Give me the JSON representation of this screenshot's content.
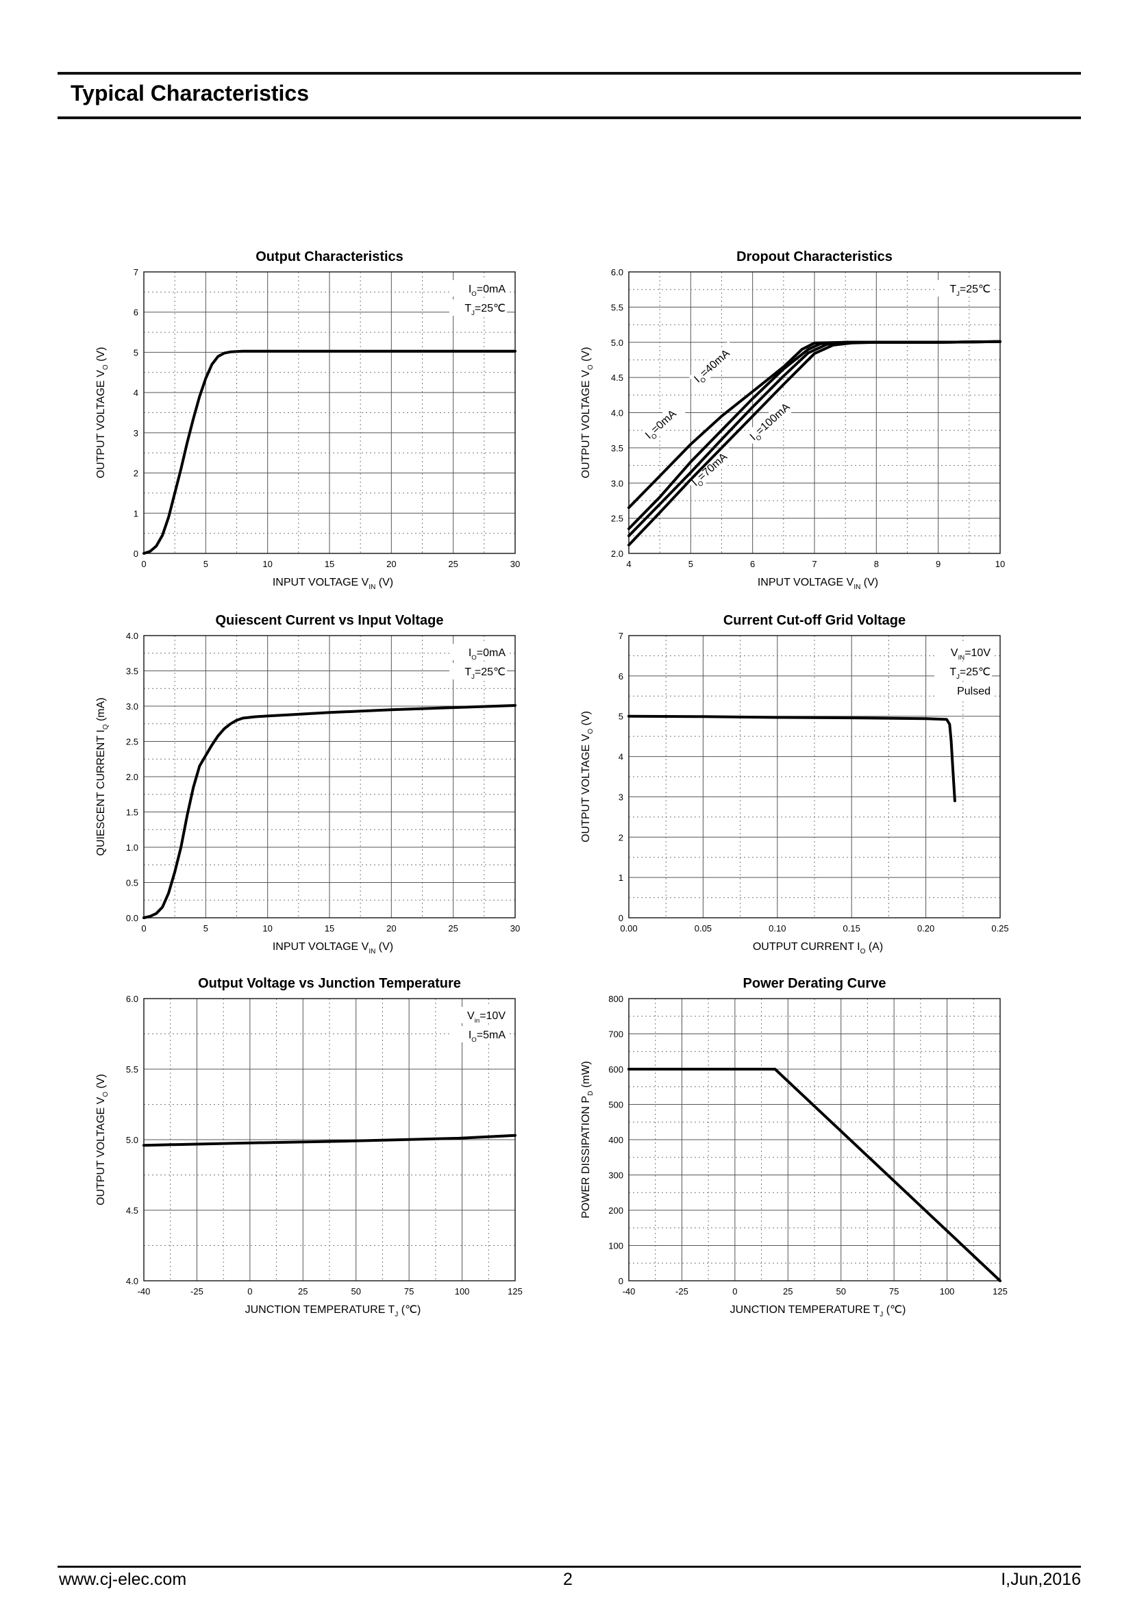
{
  "header": {
    "title": "Typical Characteristics"
  },
  "footer": {
    "url": "www.cj-elec.com",
    "page": "2",
    "date": "I,Jun,2016"
  },
  "chart_data": [
    {
      "type": "line",
      "title": "Output  Characteristics",
      "xlabel": "INPUT VOLTAGE",
      "xlabel_sym": "V",
      "xlabel_sub": "IN",
      "xlabel_unit": "(V)",
      "ylabel": "OUTPUT VOLTAGE",
      "ylabel_sym": "V",
      "ylabel_sub": "O",
      "ylabel_unit": "(V)",
      "xlim": [
        0,
        30
      ],
      "ylim": [
        0,
        7
      ],
      "xticks": [
        "0",
        "5",
        "10",
        "15",
        "20",
        "25",
        "30"
      ],
      "yticks": [
        "0",
        "1",
        "2",
        "3",
        "4",
        "5",
        "6",
        "7"
      ],
      "grid": true,
      "annotations": [
        {
          "sym": "I",
          "sub": "O",
          "rest": "=0mA"
        },
        {
          "sym": "T",
          "sub": "J",
          "rest": "=25℃"
        }
      ],
      "series": [
        {
          "x": [
            0,
            0.5,
            1,
            1.5,
            2,
            2.5,
            3,
            3.5,
            4,
            4.5,
            5,
            5.5,
            6,
            6.5,
            7,
            7.5,
            8,
            9,
            10,
            12,
            15,
            20,
            25,
            30
          ],
          "y": [
            0,
            0.05,
            0.18,
            0.45,
            0.9,
            1.5,
            2.1,
            2.75,
            3.35,
            3.9,
            4.35,
            4.7,
            4.9,
            4.98,
            5.01,
            5.02,
            5.03,
            5.03,
            5.03,
            5.03,
            5.03,
            5.03,
            5.03,
            5.03
          ]
        }
      ]
    },
    {
      "type": "line",
      "title": "Dropout Characteristics",
      "xlabel": "INPUT VOLTAGE",
      "xlabel_sym": "V",
      "xlabel_sub": "IN",
      "xlabel_unit": "(V)",
      "ylabel": "OUTPUT VOLTAGE",
      "ylabel_sym": "V",
      "ylabel_sub": "O",
      "ylabel_unit": "(V)",
      "xlim": [
        4,
        10
      ],
      "ylim": [
        2.0,
        6.0
      ],
      "xticks": [
        "4",
        "5",
        "6",
        "7",
        "8",
        "9",
        "10"
      ],
      "yticks": [
        "2.0",
        "2.5",
        "3.0",
        "3.5",
        "4.0",
        "4.5",
        "5.0",
        "5.5",
        "6.0"
      ],
      "grid": true,
      "annotations": [
        {
          "sym": "T",
          "sub": "J",
          "rest": "=25℃"
        }
      ],
      "series": [
        {
          "name": "=0mA",
          "sym": "I",
          "sub": "O",
          "x": [
            4,
            4.5,
            5,
            5.5,
            6,
            6.5,
            6.8,
            7,
            7.5,
            8,
            9,
            10
          ],
          "y": [
            2.65,
            3.1,
            3.55,
            3.95,
            4.3,
            4.65,
            4.9,
            4.99,
            5.0,
            5.0,
            5.0,
            5.01
          ]
        },
        {
          "name": "=40mA",
          "sym": "I",
          "sub": "O",
          "x": [
            4,
            4.5,
            5,
            5.5,
            6,
            6.5,
            6.9,
            7.1,
            7.5,
            8,
            9,
            10
          ],
          "y": [
            2.35,
            2.8,
            3.3,
            3.75,
            4.2,
            4.62,
            4.9,
            4.98,
            5.0,
            5.0,
            5.0,
            5.01
          ]
        },
        {
          "name": "=70mA",
          "sym": "I",
          "sub": "O",
          "x": [
            4,
            4.5,
            5,
            5.5,
            6,
            6.5,
            6.9,
            7.2,
            7.5,
            8,
            9,
            10
          ],
          "y": [
            2.25,
            2.7,
            3.15,
            3.62,
            4.08,
            4.52,
            4.85,
            4.97,
            5.0,
            5.0,
            5.0,
            5.01
          ]
        },
        {
          "name": "=100mA",
          "sym": "I",
          "sub": "O",
          "x": [
            4,
            4.5,
            5,
            5.5,
            6,
            6.5,
            7,
            7.3,
            7.6,
            8,
            9,
            10
          ],
          "y": [
            2.12,
            2.58,
            3.05,
            3.5,
            3.95,
            4.4,
            4.84,
            4.96,
            4.99,
            5.0,
            5.0,
            5.01
          ]
        }
      ]
    },
    {
      "type": "line",
      "title": "Quiescent Current vs Input Voltage",
      "xlabel": "INPUT VOLTAGE",
      "xlabel_sym": "V",
      "xlabel_sub": "IN",
      "xlabel_unit": "(V)",
      "ylabel": "QUIESCENT CURRENT",
      "ylabel_sym": "I",
      "ylabel_sub": "Q",
      "ylabel_unit": "(mA)",
      "xlim": [
        0,
        30
      ],
      "ylim": [
        0.0,
        4.0
      ],
      "xticks": [
        "0",
        "5",
        "10",
        "15",
        "20",
        "25",
        "30"
      ],
      "yticks": [
        "0.0",
        "0.5",
        "1.0",
        "1.5",
        "2.0",
        "2.5",
        "3.0",
        "3.5",
        "4.0"
      ],
      "grid": true,
      "annotations": [
        {
          "sym": "I",
          "sub": "O",
          "rest": "=0mA"
        },
        {
          "sym": "T",
          "sub": "J",
          "rest": "=25℃"
        }
      ],
      "series": [
        {
          "x": [
            0,
            0.5,
            1,
            1.5,
            2,
            2.5,
            3,
            3.5,
            4,
            4.5,
            5,
            5.5,
            6,
            6.5,
            7,
            7.5,
            8,
            9,
            10,
            12,
            15,
            20,
            25,
            30
          ],
          "y": [
            0,
            0.02,
            0.06,
            0.15,
            0.35,
            0.65,
            1.0,
            1.45,
            1.85,
            2.15,
            2.3,
            2.45,
            2.58,
            2.68,
            2.75,
            2.8,
            2.83,
            2.85,
            2.86,
            2.88,
            2.91,
            2.95,
            2.98,
            3.01
          ]
        }
      ]
    },
    {
      "type": "line",
      "title": "Current  Cut-off Grid Voltage",
      "xlabel": "OUTPUT CURRENT",
      "xlabel_sym": "I",
      "xlabel_sub": "O",
      "xlabel_unit": "(A)",
      "ylabel": "OUTPUT VOLTAGE",
      "ylabel_sym": "V",
      "ylabel_sub": "O",
      "ylabel_unit": "(V)",
      "xlim": [
        0.0,
        0.25
      ],
      "ylim": [
        0,
        7
      ],
      "xticks": [
        "0.00",
        "0.05",
        "0.10",
        "0.15",
        "0.20",
        "0.25"
      ],
      "yticks": [
        "0",
        "1",
        "2",
        "3",
        "4",
        "5",
        "6",
        "7"
      ],
      "grid": true,
      "annotations": [
        {
          "sym": "V",
          "sub": "IN",
          "rest": "=10V"
        },
        {
          "sym": "T",
          "sub": "J",
          "rest": "=25℃"
        },
        {
          "sym": "",
          "sub": "",
          "rest": "Pulsed"
        }
      ],
      "series": [
        {
          "x": [
            0,
            0.05,
            0.1,
            0.15,
            0.2,
            0.214,
            0.216,
            0.217,
            0.218,
            0.219,
            0.2195
          ],
          "y": [
            5.0,
            4.99,
            4.97,
            4.96,
            4.94,
            4.92,
            4.8,
            4.4,
            3.8,
            3.2,
            2.9
          ]
        }
      ]
    },
    {
      "type": "line",
      "title": "Output Voltage vs Junction Temperature",
      "xlabel": "JUNCTION TEMPERATURE",
      "xlabel_sym": "T",
      "xlabel_sub": "J",
      "xlabel_unit": "(℃)",
      "ylabel": "OUTPUT VOLTAGE",
      "ylabel_sym": "V",
      "ylabel_sub": "O",
      "ylabel_unit": "(V)",
      "xlim": [
        -40,
        125
      ],
      "ylim": [
        4.0,
        6.0
      ],
      "xticks": [
        "-40",
        "-25",
        "0",
        "25",
        "50",
        "75",
        "100",
        "125"
      ],
      "yticks": [
        "4.0",
        "4.5",
        "5.0",
        "5.5",
        "6.0"
      ],
      "grid": true,
      "annotations": [
        {
          "sym": "V",
          "sub": "in",
          "rest": "=10V"
        },
        {
          "sym": "I",
          "sub": "O",
          "rest": "=5mA"
        }
      ],
      "series": [
        {
          "x": [
            -40,
            0,
            50,
            75,
            100,
            125
          ],
          "y": [
            4.96,
            4.975,
            4.99,
            5.0,
            5.01,
            5.03
          ]
        }
      ]
    },
    {
      "type": "line",
      "title": "Power Derating Curve",
      "xlabel": "JUNCTION TEMPERATURE",
      "xlabel_sym": "T",
      "xlabel_sub": "J",
      "xlabel_unit": "(℃)",
      "ylabel": "POWER DISSIPATION",
      "ylabel_sym": "P",
      "ylabel_sub": "D",
      "ylabel_unit": "(mW)",
      "xlim": [
        -40,
        125
      ],
      "ylim": [
        0,
        800
      ],
      "xticks": [
        "-40",
        "-25",
        "0",
        "25",
        "50",
        "75",
        "100",
        "125"
      ],
      "yticks": [
        "0",
        "100",
        "200",
        "300",
        "400",
        "500",
        "600",
        "700",
        "800"
      ],
      "grid": true,
      "annotations": [],
      "series": [
        {
          "x": [
            -40,
            25,
            125
          ],
          "y": [
            600,
            600,
            0
          ]
        }
      ]
    }
  ]
}
